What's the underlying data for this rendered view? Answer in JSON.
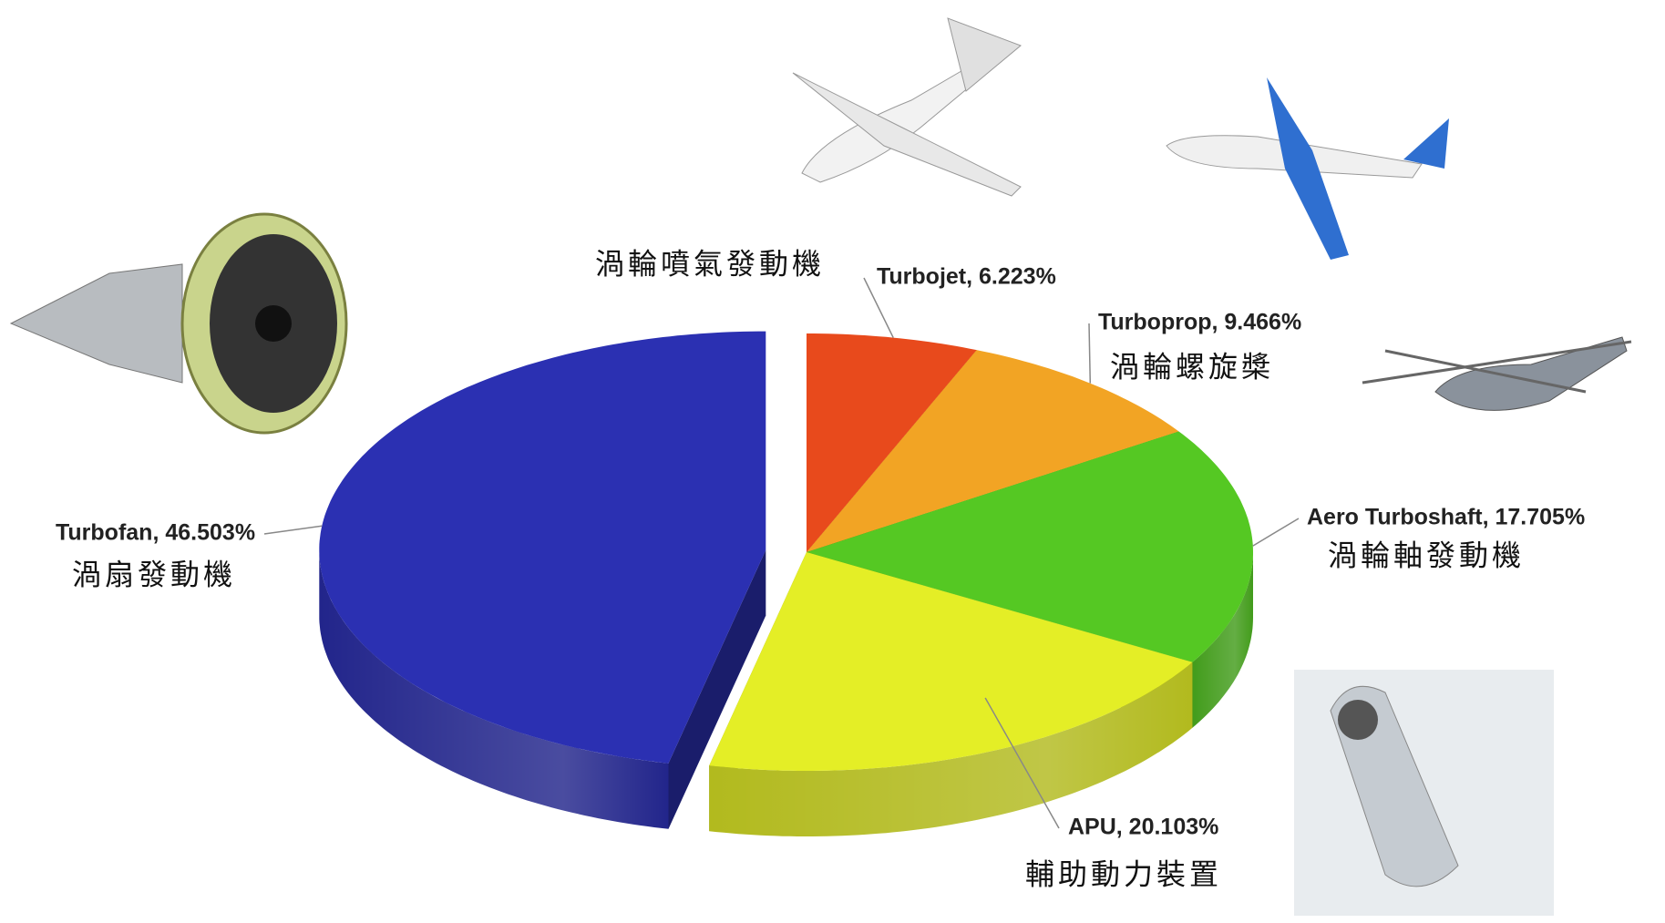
{
  "chart_data": {
    "type": "pie3d",
    "categories": [
      "Turbojet",
      "Turboprop",
      "Aero Turboshaft",
      "APU",
      "Turbofan"
    ],
    "values": [
      6.223,
      9.466,
      17.705,
      20.103,
      46.503
    ],
    "value_labels": [
      "Turbojet, 6.223%",
      "Turboprop, 9.466%",
      "Aero Turboshaft, 17.705%",
      "APU, 20.103%",
      "Turbofan, 46.503%"
    ],
    "chinese_labels": [
      "渦輪噴氣發動機",
      "渦輪螺旋槳",
      "渦輪軸發動機",
      "輔助動力裝置",
      "渦扇發動機"
    ],
    "colors": [
      "#e84a1c",
      "#f2a424",
      "#55c823",
      "#e4ee26",
      "#2b30b2"
    ],
    "exploded": [
      false,
      false,
      false,
      false,
      true
    ]
  }
}
